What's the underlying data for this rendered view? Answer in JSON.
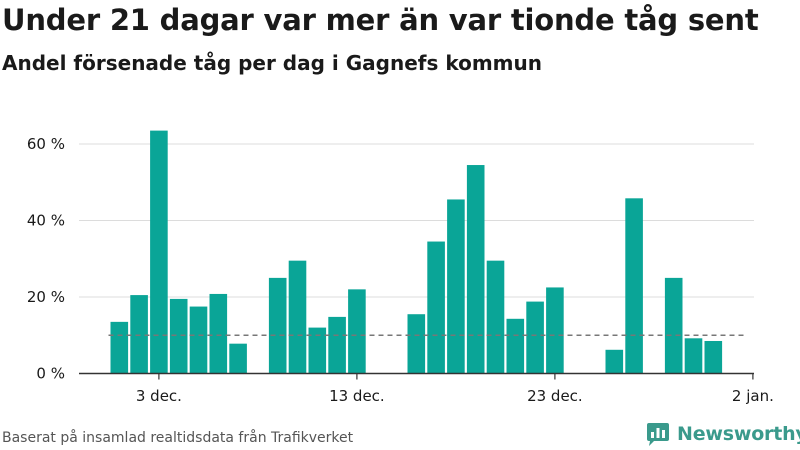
{
  "title": "Under 21 dagar var mer än var tionde tåg sent",
  "subtitle": "Andel försenade tåg per dag i Gagnefs kommun",
  "footer": "Baserat på insamlad realtidsdata från Trafikverket",
  "brand": "Newsworthy",
  "colors": {
    "bar": "#0aa597",
    "grid": "#dcdcdc",
    "axis": "#333333",
    "reference_line": "#777777",
    "brand": "#3a9a8c"
  },
  "chart_data": {
    "type": "bar",
    "x_start": "2023-12-01",
    "x": [
      "1 dec.",
      "2 dec.",
      "3 dec.",
      "4 dec.",
      "5 dec.",
      "6 dec.",
      "7 dec.",
      "8 dec.",
      "9 dec.",
      "10 dec.",
      "11 dec.",
      "12 dec.",
      "13 dec.",
      "14 dec.",
      "15 dec.",
      "16 dec.",
      "17 dec.",
      "18 dec.",
      "19 dec.",
      "20 dec.",
      "21 dec.",
      "22 dec.",
      "23 dec.",
      "24 dec.",
      "25 dec.",
      "26 dec.",
      "27 dec.",
      "28 dec.",
      "29 dec.",
      "30 dec.",
      "31 dec.",
      "1 jan."
    ],
    "values": [
      13.5,
      20.5,
      63.5,
      19.5,
      17.5,
      20.8,
      7.8,
      null,
      25,
      29.5,
      12,
      14.8,
      22,
      null,
      null,
      15.5,
      34.5,
      45.5,
      54.5,
      29.5,
      14.3,
      18.8,
      22.5,
      null,
      null,
      6.2,
      45.8,
      null,
      25,
      9.2,
      8.5,
      null
    ],
    "ylim": [
      0,
      65
    ],
    "yticks": [
      0,
      20,
      40,
      60
    ],
    "ytick_labels": [
      "0 %",
      "20 %",
      "40 %",
      "60 %"
    ],
    "xticks": [
      3,
      13,
      23,
      33
    ],
    "xtick_labels": [
      "3 dec.",
      "13 dec.",
      "23 dec.",
      "2 jan."
    ],
    "reference_line": 10,
    "grid": true
  }
}
